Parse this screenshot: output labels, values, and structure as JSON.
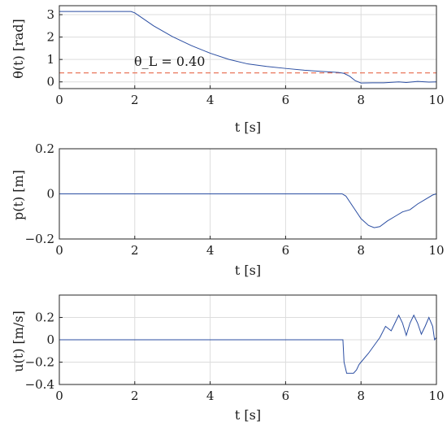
{
  "chart_data": [
    {
      "type": "line",
      "xlabel": "t [s]",
      "ylabel": "θ(t) [rad]",
      "xlim": [
        0,
        10
      ],
      "ylim": [
        -0.3,
        3.4
      ],
      "xticks": [
        "0",
        "2",
        "4",
        "6",
        "8",
        "10"
      ],
      "yticks": [
        "0",
        "1",
        "2",
        "3"
      ],
      "grid": true,
      "annotation": "θ_L = 0.40",
      "threshold": 0.4,
      "series": [
        {
          "x": [
            0,
            1.9,
            2.0,
            2.2,
            2.5,
            3.0,
            3.5,
            4.0,
            4.5,
            5.0,
            5.5,
            6.0,
            6.5,
            7.0,
            7.4,
            7.55,
            7.7,
            7.85,
            8.0,
            8.3,
            8.6,
            9.0,
            9.2,
            9.5,
            9.8,
            10.0
          ],
          "y": [
            3.14,
            3.14,
            3.08,
            2.85,
            2.5,
            2.02,
            1.62,
            1.28,
            1.0,
            0.8,
            0.69,
            0.6,
            0.52,
            0.46,
            0.42,
            0.38,
            0.25,
            0.05,
            -0.05,
            -0.04,
            -0.04,
            0.0,
            -0.03,
            0.02,
            -0.01,
            0.0
          ]
        }
      ]
    },
    {
      "type": "line",
      "xlabel": "t [s]",
      "ylabel": "p(t) [m]",
      "xlim": [
        0,
        10
      ],
      "ylim": [
        -0.2,
        0.2
      ],
      "xticks": [
        "0",
        "2",
        "4",
        "6",
        "8",
        "10"
      ],
      "yticks": [
        "−0.2",
        "0",
        "0.2"
      ],
      "grid": true,
      "series": [
        {
          "x": [
            0,
            7.5,
            7.6,
            7.8,
            8.0,
            8.2,
            8.35,
            8.5,
            8.7,
            8.9,
            9.1,
            9.3,
            9.5,
            9.7,
            9.9,
            10.0
          ],
          "y": [
            0,
            0,
            -0.01,
            -0.06,
            -0.11,
            -0.14,
            -0.15,
            -0.145,
            -0.12,
            -0.1,
            -0.08,
            -0.07,
            -0.045,
            -0.025,
            -0.005,
            0.0
          ]
        }
      ]
    },
    {
      "type": "line",
      "xlabel": "t [s]",
      "ylabel": "u(t) [m/s]",
      "xlim": [
        0,
        10
      ],
      "ylim": [
        -0.4,
        0.4
      ],
      "xticks": [
        "0",
        "2",
        "4",
        "6",
        "8",
        "10"
      ],
      "yticks": [
        "−0.4",
        "−0.2",
        "0",
        "0.2"
      ],
      "grid": true,
      "series": [
        {
          "x": [
            0,
            7.52,
            7.55,
            7.62,
            7.8,
            7.88,
            7.95,
            8.05,
            8.2,
            8.35,
            8.5,
            8.65,
            8.8,
            8.9,
            9.0,
            9.1,
            9.2,
            9.3,
            9.4,
            9.5,
            9.6,
            9.7,
            9.8,
            9.9,
            9.95,
            10.0
          ],
          "y": [
            0,
            0,
            -0.2,
            -0.3,
            -0.3,
            -0.27,
            -0.22,
            -0.18,
            -0.12,
            -0.05,
            0.02,
            0.12,
            0.08,
            0.15,
            0.22,
            0.15,
            0.04,
            0.15,
            0.22,
            0.15,
            0.05,
            0.12,
            0.2,
            0.12,
            0.0,
            0.02
          ]
        }
      ]
    }
  ]
}
